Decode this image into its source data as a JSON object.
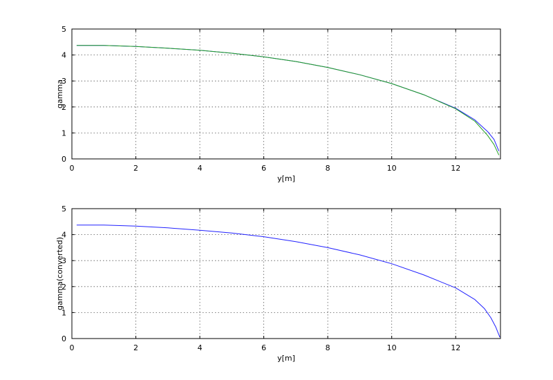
{
  "colors": {
    "series_blue": "#2020ff",
    "series_green": "#20a020",
    "grid": "#555555",
    "axes": "#000000"
  },
  "chart_data": [
    {
      "type": "line",
      "xlabel": "y[m]",
      "ylabel": "gamma",
      "xlim": [
        0,
        13.4
      ],
      "ylim": [
        0,
        5
      ],
      "xticks": [
        "0",
        "2",
        "4",
        "6",
        "8",
        "10",
        "12"
      ],
      "yticks": [
        "0",
        "1",
        "2",
        "3",
        "4",
        "5"
      ],
      "grid": true,
      "series": [
        {
          "color": "#2020ff",
          "x": [
            0.15,
            1.0,
            2.0,
            3.0,
            4.0,
            5.0,
            6.0,
            7.0,
            8.0,
            9.0,
            10.0,
            11.0,
            12.0,
            12.6,
            13.0,
            13.2,
            13.35
          ],
          "y": [
            4.37,
            4.37,
            4.33,
            4.26,
            4.18,
            4.07,
            3.93,
            3.75,
            3.52,
            3.24,
            2.9,
            2.47,
            1.95,
            1.5,
            1.05,
            0.75,
            0.3
          ]
        },
        {
          "color": "#20a020",
          "x": [
            0.15,
            1.0,
            2.0,
            3.0,
            4.0,
            5.0,
            6.0,
            7.0,
            8.0,
            9.0,
            10.0,
            11.0,
            12.0,
            12.6,
            13.0,
            13.2,
            13.35
          ],
          "y": [
            4.37,
            4.37,
            4.33,
            4.26,
            4.18,
            4.07,
            3.93,
            3.75,
            3.52,
            3.24,
            2.9,
            2.47,
            1.93,
            1.45,
            0.9,
            0.55,
            0.15
          ]
        }
      ]
    },
    {
      "type": "line",
      "xlabel": "y[m]",
      "ylabel": "gamma(converted)",
      "xlim": [
        0,
        13.4
      ],
      "ylim": [
        0,
        5
      ],
      "xticks": [
        "0",
        "2",
        "4",
        "6",
        "8",
        "10",
        "12"
      ],
      "yticks": [
        "0",
        "1",
        "2",
        "3",
        "4",
        "5"
      ],
      "grid": true,
      "series": [
        {
          "color": "#2020ff",
          "x": [
            0.15,
            1.0,
            2.0,
            3.0,
            4.0,
            5.0,
            6.0,
            7.0,
            8.0,
            9.0,
            10.0,
            11.0,
            12.0,
            12.6,
            12.9,
            13.1,
            13.25,
            13.38
          ],
          "y": [
            4.37,
            4.37,
            4.33,
            4.26,
            4.17,
            4.06,
            3.92,
            3.73,
            3.5,
            3.22,
            2.88,
            2.45,
            1.95,
            1.5,
            1.15,
            0.8,
            0.45,
            0.05
          ]
        }
      ]
    }
  ]
}
